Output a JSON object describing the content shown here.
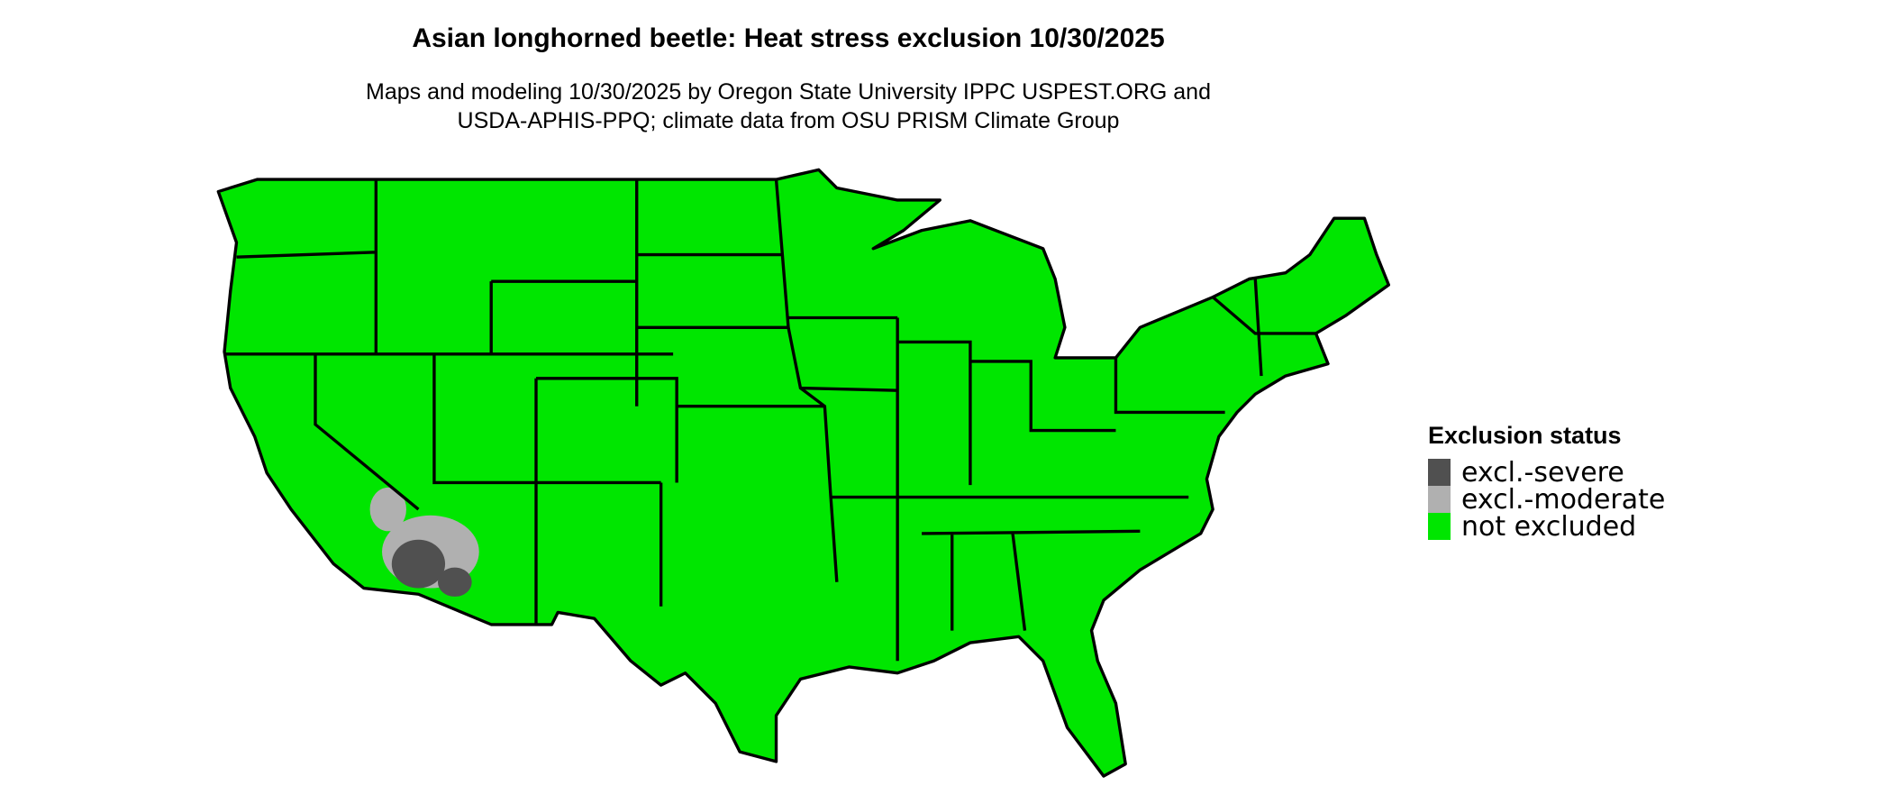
{
  "title": "Asian longhorned beetle: Heat stress exclusion 10/30/2025",
  "subtitle_lines": [
    "Maps and modeling 10/30/2025 by Oregon State University IPPC USPEST.ORG and",
    "USDA-APHIS-PPQ; climate data from OSU PRISM Climate Group"
  ],
  "legend": {
    "title": "Exclusion status",
    "items": [
      {
        "label": "excl.-severe",
        "color": "#505050"
      },
      {
        "label": "excl.-moderate",
        "color": "#b0b0b0"
      },
      {
        "label": "not excluded",
        "color": "#00e600"
      }
    ]
  },
  "map": {
    "region": "Contiguous United States",
    "fill_color": "#00e600",
    "border_color": "#000000"
  }
}
